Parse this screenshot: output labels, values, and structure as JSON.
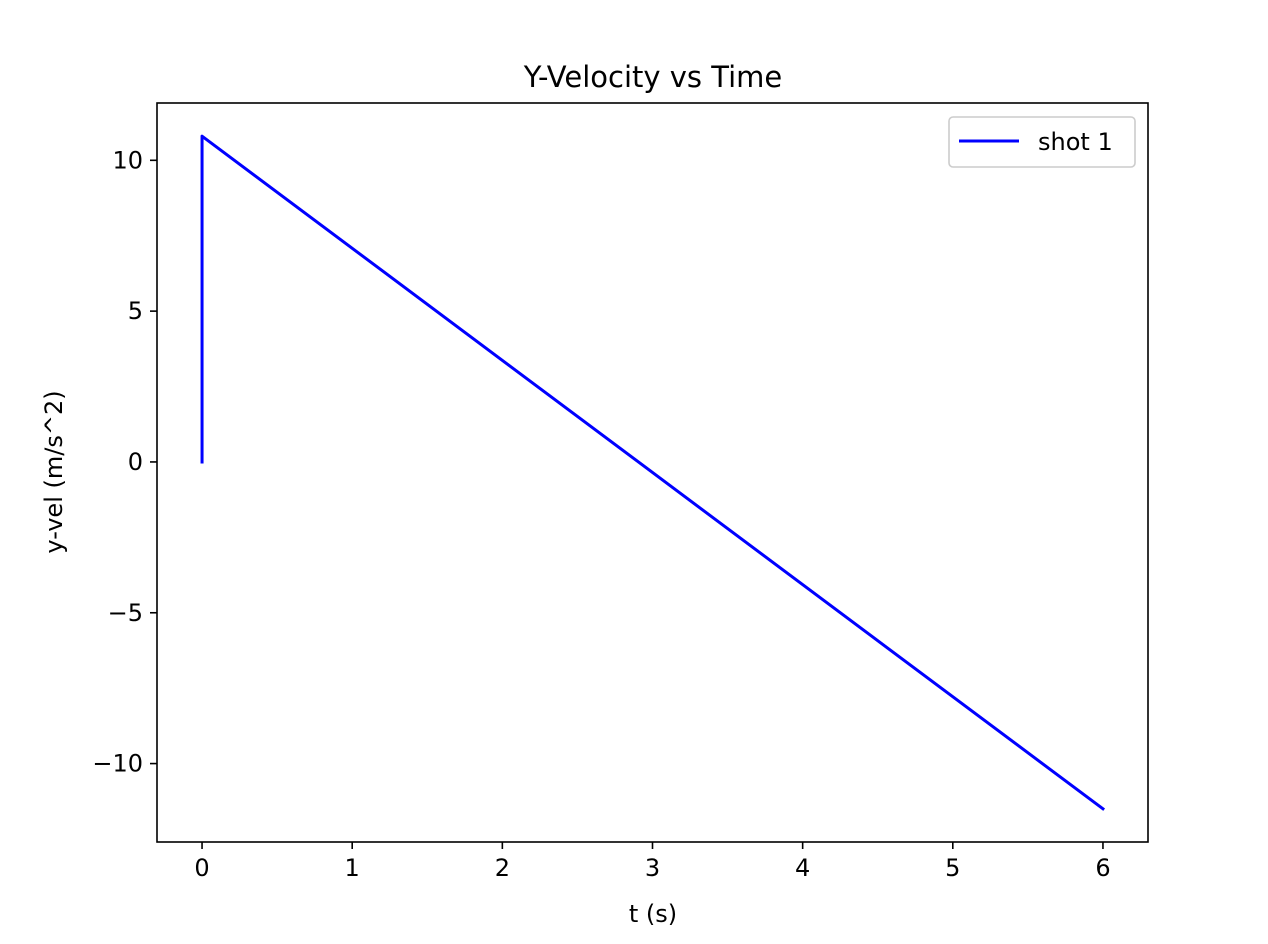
{
  "chart_data": {
    "type": "line",
    "title": "Y-Velocity vs Time",
    "xlabel": "t (s)",
    "ylabel": "y-vel (m/s^2)",
    "xlim": [
      -0.3,
      6.3
    ],
    "ylim": [
      -12.6,
      11.9
    ],
    "x_ticks": [
      0,
      1,
      2,
      3,
      4,
      5,
      6
    ],
    "x_tick_labels": [
      "0",
      "1",
      "2",
      "3",
      "4",
      "5",
      "6"
    ],
    "y_ticks": [
      10,
      5,
      0,
      -5,
      -10
    ],
    "y_tick_labels": [
      "10",
      "5",
      "0",
      "−5",
      "−10"
    ],
    "grid": false,
    "legend_position": "top-right",
    "series": [
      {
        "name": "shot 1",
        "color": "#0000ff",
        "x": [
          0,
          0,
          6
        ],
        "y": [
          0,
          10.8,
          -11.5
        ]
      }
    ]
  }
}
